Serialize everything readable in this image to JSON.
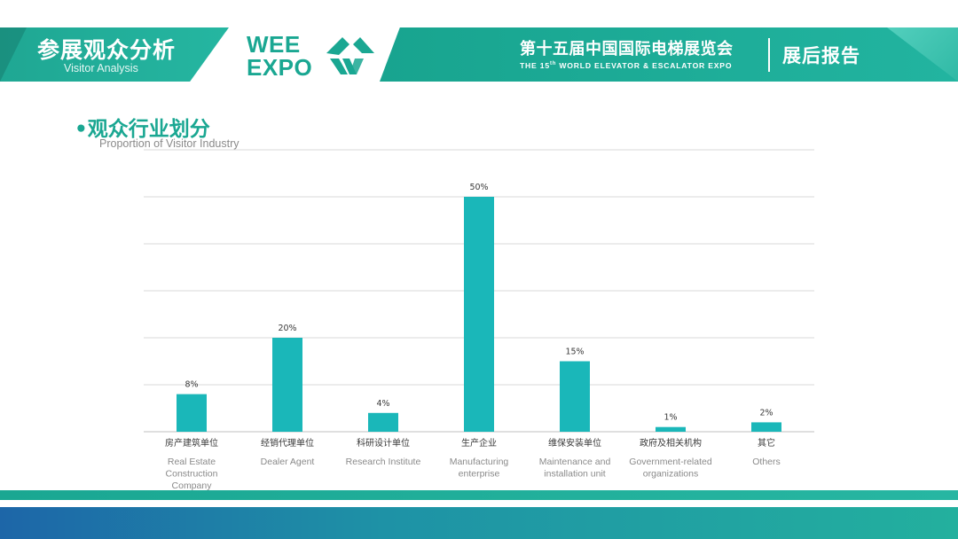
{
  "header": {
    "section_cn": "参展观众分析",
    "section_en": "Visitor Analysis",
    "logo_line1": "WEE",
    "logo_line2": "EXPO",
    "event_cn": "第十五届中国国际电梯展览会",
    "event_en_prefix": "THE 15",
    "event_en_sup": "th",
    "event_en_suffix": " WORLD ELEVATOR & ESCALATOR EXPO",
    "report": "展后报告"
  },
  "section": {
    "title": "•观众行业划分",
    "subtitle": "Proportion of Visitor Industry"
  },
  "colors": {
    "brand": "#1aa792",
    "bar": "#1ab7b9",
    "grid": "#d9d9d9",
    "label": "#3a3a3a",
    "label_en": "#8a8a8a"
  },
  "chart_data": {
    "type": "bar",
    "categories": [
      "房产建筑单位",
      "经销代理单位",
      "科研设计单位",
      "生产企业",
      "维保安装单位",
      "政府及相关机构",
      "其它"
    ],
    "categories_en": [
      [
        "Real Estate",
        "Construction",
        "Company"
      ],
      [
        "Dealer Agent"
      ],
      [
        "Research Institute"
      ],
      [
        "Manufacturing",
        "enterprise"
      ],
      [
        "Maintenance and",
        "installation unit"
      ],
      [
        "Government-related",
        "organizations"
      ],
      [
        "Others"
      ]
    ],
    "values": [
      8,
      20,
      4,
      50,
      15,
      1,
      2
    ],
    "data_labels": [
      "8%",
      "20%",
      "4%",
      "50%",
      "15%",
      "1%",
      "2%"
    ],
    "ylim": [
      0,
      60
    ],
    "grid": true,
    "legend": "none"
  }
}
